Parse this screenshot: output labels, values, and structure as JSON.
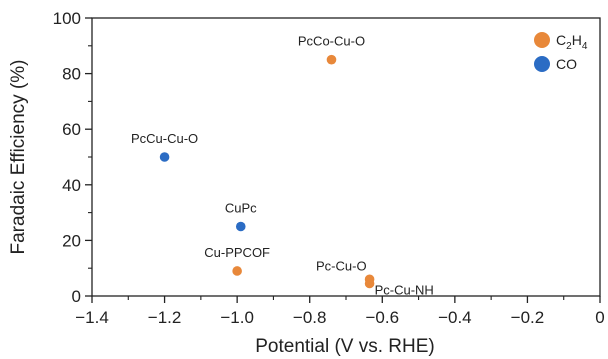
{
  "chart_data": {
    "type": "scatter",
    "xlabel": "Potential (V vs. RHE)",
    "ylabel": "Faradaic Efficiency (%)",
    "xlim": [
      -1.4,
      0
    ],
    "ylim": [
      0,
      100
    ],
    "xticks": [
      -1.4,
      -1.2,
      -1.0,
      -0.8,
      -0.6,
      -0.4,
      -0.2,
      0
    ],
    "xtick_labels": [
      "−1.4",
      "−1.2",
      "−1.0",
      "−0.8",
      "−0.6",
      "−0.4",
      "−0.2",
      "0"
    ],
    "yticks": [
      0,
      20,
      40,
      60,
      80,
      100
    ],
    "ytick_labels": [
      "0",
      "20",
      "40",
      "60",
      "80",
      "100"
    ],
    "grid": false,
    "legend_position": "top-right",
    "series": [
      {
        "name": "C2H4",
        "color": "#E8883A",
        "points": [
          {
            "x": -0.74,
            "y": 85,
            "label": "PcCo-Cu-O"
          },
          {
            "x": -1.0,
            "y": 9,
            "label": "Cu-PPCOF"
          },
          {
            "x": -0.635,
            "y": 6,
            "label": "Pc-Cu-O"
          },
          {
            "x": -0.635,
            "y": 4.5,
            "label": "Pc-Cu-NH"
          }
        ]
      },
      {
        "name": "CO",
        "color": "#2B6CC4",
        "points": [
          {
            "x": -1.2,
            "y": 50,
            "label": "PcCu-Cu-O"
          },
          {
            "x": -0.99,
            "y": 25,
            "label": "CuPc"
          }
        ]
      }
    ]
  }
}
